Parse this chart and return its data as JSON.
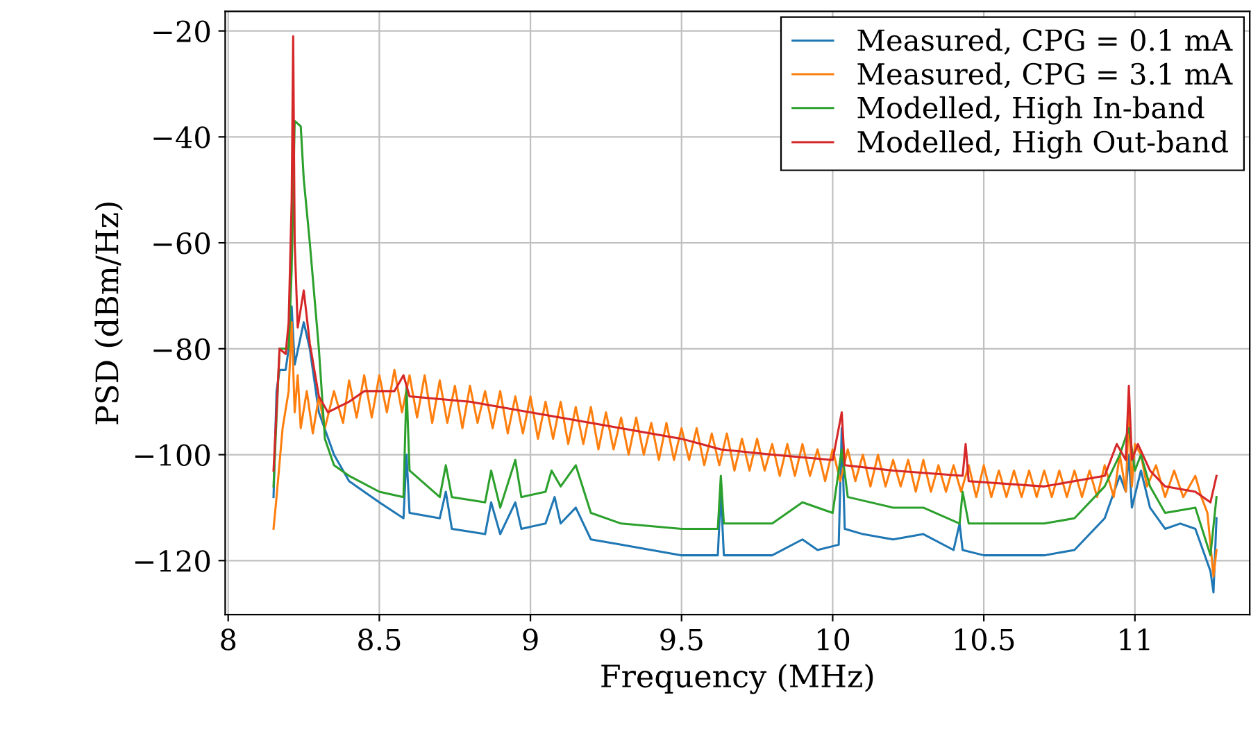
{
  "chart_data": {
    "type": "line",
    "xlabel": "Frequency (MHz)",
    "ylabel": "PSD (dBm/Hz)",
    "xlim": [
      7.99,
      11.38
    ],
    "ylim": [
      -130.2,
      -16.3
    ],
    "xticks": [
      8,
      8.5,
      9,
      9.5,
      10,
      10.5,
      11
    ],
    "yticks": [
      {
        "value": -120,
        "label": "−120"
      },
      {
        "value": -100,
        "label": "−100"
      },
      {
        "value": -80,
        "label": "−80"
      },
      {
        "value": -60,
        "label": "−60"
      },
      {
        "value": -40,
        "label": "−40"
      },
      {
        "value": -20,
        "label": "−20"
      }
    ],
    "grid": true,
    "legend": "top right",
    "marker": "none",
    "line_style": "solid",
    "series": [
      {
        "name": "Measured, CPG = 0.1 mA",
        "color": "#1f77b4",
        "x": [
          8.15,
          8.16,
          8.17,
          8.19,
          8.2,
          8.21,
          8.22,
          8.25,
          8.27,
          8.3,
          8.35,
          8.4,
          8.5,
          8.58,
          8.59,
          8.6,
          8.7,
          8.72,
          8.74,
          8.85,
          8.87,
          8.9,
          8.95,
          8.97,
          9.05,
          9.08,
          9.1,
          9.15,
          9.2,
          9.3,
          9.5,
          9.62,
          9.63,
          9.64,
          9.8,
          9.9,
          9.95,
          10.02,
          10.03,
          10.04,
          10.1,
          10.2,
          10.3,
          10.4,
          10.42,
          10.43,
          10.5,
          10.7,
          10.8,
          10.9,
          10.95,
          10.97,
          10.98,
          10.99,
          11.02,
          11.05,
          11.1,
          11.15,
          11.2,
          11.25,
          11.26,
          11.27
        ],
        "values": [
          -108,
          -88,
          -84,
          -84,
          -80,
          -72,
          -83,
          -75,
          -80,
          -92,
          -100,
          -105,
          -109,
          -112,
          -100,
          -111,
          -112,
          -107,
          -114,
          -115,
          -109,
          -115,
          -109,
          -114,
          -113,
          -108,
          -113,
          -110,
          -116,
          -117,
          -119,
          -119,
          -107,
          -119,
          -119,
          -116,
          -118,
          -117,
          -95,
          -114,
          -115,
          -116,
          -115,
          -118,
          -113,
          -118,
          -119,
          -119,
          -118,
          -112,
          -104,
          -107,
          -100,
          -110,
          -103,
          -110,
          -114,
          -113,
          -114,
          -122,
          -126,
          -112
        ]
      },
      {
        "name": "Measured, CPG = 3.1 mA",
        "color": "#ff7f0e",
        "x": [
          8.15,
          8.16,
          8.18,
          8.2,
          8.21,
          8.22,
          8.23,
          8.24,
          8.26,
          8.28,
          8.3,
          8.32,
          8.35,
          8.38,
          8.4,
          8.425,
          8.45,
          8.475,
          8.5,
          8.525,
          8.55,
          8.575,
          8.6,
          8.625,
          8.65,
          8.675,
          8.7,
          8.725,
          8.75,
          8.775,
          8.8,
          8.825,
          8.85,
          8.875,
          8.9,
          8.925,
          8.95,
          8.975,
          9.0,
          9.025,
          9.05,
          9.075,
          9.1,
          9.125,
          9.15,
          9.175,
          9.2,
          9.225,
          9.25,
          9.275,
          9.3,
          9.325,
          9.35,
          9.375,
          9.4,
          9.425,
          9.45,
          9.475,
          9.5,
          9.525,
          9.55,
          9.575,
          9.6,
          9.625,
          9.65,
          9.675,
          9.7,
          9.725,
          9.75,
          9.775,
          9.8,
          9.825,
          9.85,
          9.875,
          9.9,
          9.925,
          9.95,
          9.975,
          10.0,
          10.025,
          10.05,
          10.075,
          10.1,
          10.125,
          10.15,
          10.175,
          10.2,
          10.225,
          10.25,
          10.275,
          10.3,
          10.325,
          10.35,
          10.375,
          10.4,
          10.425,
          10.45,
          10.475,
          10.5,
          10.525,
          10.55,
          10.575,
          10.6,
          10.625,
          10.65,
          10.675,
          10.7,
          10.725,
          10.75,
          10.775,
          10.8,
          10.825,
          10.85,
          10.875,
          10.9,
          10.93,
          10.95,
          10.97,
          10.98,
          10.99,
          11.0,
          11.02,
          11.04,
          11.07,
          11.1,
          11.13,
          11.16,
          11.2,
          11.22,
          11.24,
          11.26,
          11.27
        ],
        "values": [
          -114,
          -108,
          -95,
          -88,
          -75,
          -92,
          -85,
          -95,
          -88,
          -96,
          -89,
          -95,
          -88,
          -94,
          -86,
          -93,
          -85,
          -93,
          -85,
          -92,
          -84,
          -92,
          -85,
          -93,
          -85,
          -94,
          -86,
          -94,
          -87,
          -95,
          -87,
          -94,
          -88,
          -95,
          -88,
          -96,
          -89,
          -96,
          -89,
          -97,
          -90,
          -97,
          -90,
          -98,
          -91,
          -98,
          -91,
          -99,
          -92,
          -99,
          -93,
          -100,
          -93,
          -100,
          -94,
          -101,
          -94,
          -101,
          -95,
          -101,
          -95,
          -102,
          -96,
          -102,
          -96,
          -103,
          -97,
          -103,
          -97,
          -103,
          -98,
          -104,
          -98,
          -104,
          -98,
          -104,
          -99,
          -105,
          -99,
          -105,
          -99,
          -105,
          -100,
          -106,
          -100,
          -106,
          -101,
          -106,
          -101,
          -107,
          -101,
          -107,
          -102,
          -107,
          -102,
          -107,
          -102,
          -108,
          -102,
          -108,
          -103,
          -108,
          -103,
          -108,
          -103,
          -108,
          -103,
          -108,
          -103,
          -108,
          -103,
          -108,
          -103,
          -108,
          -102,
          -108,
          -100,
          -107,
          -92,
          -106,
          -98,
          -100,
          -106,
          -102,
          -108,
          -103,
          -108,
          -104,
          -108,
          -111,
          -123,
          -118
        ]
      },
      {
        "name": "Modelled, High In-band",
        "color": "#2ca02c",
        "x": [
          8.15,
          8.17,
          8.2,
          8.21,
          8.22,
          8.24,
          8.25,
          8.27,
          8.3,
          8.32,
          8.35,
          8.4,
          8.5,
          8.58,
          8.59,
          8.6,
          8.7,
          8.72,
          8.74,
          8.85,
          8.87,
          8.9,
          8.95,
          8.97,
          9.05,
          9.07,
          9.1,
          9.15,
          9.2,
          9.3,
          9.5,
          9.62,
          9.63,
          9.64,
          9.8,
          9.9,
          10.0,
          10.03,
          10.05,
          10.2,
          10.3,
          10.42,
          10.43,
          10.45,
          10.7,
          10.8,
          10.9,
          10.95,
          10.98,
          11.0,
          11.02,
          11.05,
          11.1,
          11.2,
          11.25,
          11.27
        ],
        "values": [
          -106,
          -80,
          -80,
          -65,
          -37,
          -38,
          -48,
          -60,
          -80,
          -97,
          -102,
          -104,
          -107,
          -108,
          -87,
          -103,
          -108,
          -102,
          -108,
          -109,
          -103,
          -110,
          -101,
          -108,
          -107,
          -103,
          -106,
          -102,
          -111,
          -113,
          -114,
          -114,
          -104,
          -113,
          -113,
          -109,
          -111,
          -99,
          -108,
          -110,
          -110,
          -113,
          -107,
          -113,
          -113,
          -112,
          -106,
          -100,
          -95,
          -103,
          -100,
          -106,
          -111,
          -110,
          -119,
          -108
        ]
      },
      {
        "name": "Modelled, High Out-band",
        "color": "#d62728",
        "x": [
          8.15,
          8.17,
          8.19,
          8.2,
          8.21,
          8.215,
          8.22,
          8.23,
          8.25,
          8.27,
          8.3,
          8.33,
          8.4,
          8.45,
          8.55,
          8.58,
          8.6,
          8.8,
          9.0,
          9.2,
          9.5,
          9.63,
          9.8,
          10.0,
          10.03,
          10.04,
          10.2,
          10.43,
          10.44,
          10.45,
          10.7,
          10.9,
          10.94,
          10.97,
          10.98,
          10.99,
          11.01,
          11.05,
          11.1,
          11.2,
          11.25,
          11.27
        ],
        "values": [
          -103,
          -80,
          -81,
          -75,
          -52,
          -21,
          -60,
          -76,
          -69,
          -79,
          -89,
          -92,
          -90,
          -88,
          -88,
          -85,
          -89,
          -90,
          -92,
          -94,
          -97,
          -99,
          -100,
          -101,
          -92,
          -102,
          -103,
          -104,
          -98,
          -105,
          -106,
          -104,
          -98,
          -101,
          -87,
          -101,
          -98,
          -103,
          -106,
          -107,
          -109,
          -104
        ]
      }
    ]
  }
}
